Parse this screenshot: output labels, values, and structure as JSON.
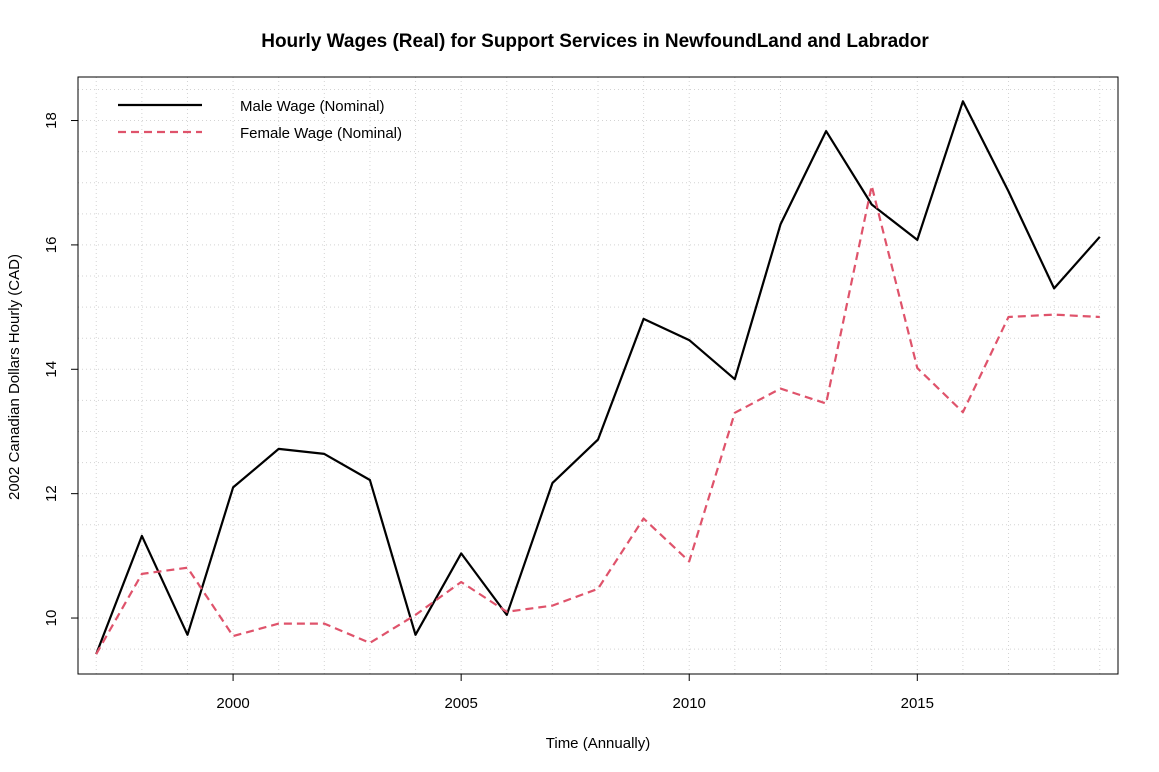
{
  "chart_data": {
    "type": "line",
    "title": "Hourly Wages (Real) for Support Services in NewfoundLand and Labrador",
    "xlabel": "Time (Annually)",
    "ylabel": "2002 Canadian Dollars Hourly (CAD)",
    "xlim": [
      1996.6,
      2019.4
    ],
    "ylim": [
      9.1,
      18.7
    ],
    "xticks": [
      2000,
      2005,
      2010,
      2015
    ],
    "yticks": [
      10,
      12,
      14,
      16,
      18
    ],
    "grid": true,
    "legend_position": "top-left",
    "x": [
      1997,
      1998,
      1999,
      2000,
      2001,
      2002,
      2003,
      2004,
      2005,
      2006,
      2007,
      2008,
      2009,
      2010,
      2011,
      2012,
      2013,
      2014,
      2015,
      2016,
      2017,
      2018,
      2019
    ],
    "series": [
      {
        "name": "Male Wage (Nominal)",
        "color": "#000000",
        "dash": "solid",
        "values": [
          9.42,
          11.32,
          9.73,
          12.1,
          12.72,
          12.64,
          12.22,
          9.73,
          11.04,
          10.05,
          12.17,
          12.87,
          14.81,
          14.47,
          13.84,
          16.33,
          17.83,
          16.65,
          16.08,
          18.31,
          16.86,
          15.3,
          16.13
        ]
      },
      {
        "name": "Female Wage (Nominal)",
        "color": "#DF536B",
        "dash": "dashed",
        "values": [
          9.42,
          10.71,
          10.81,
          9.71,
          9.91,
          9.91,
          9.6,
          10.05,
          10.58,
          10.1,
          10.2,
          10.47,
          11.6,
          10.91,
          13.3,
          13.69,
          13.45,
          16.95,
          14.02,
          13.31,
          14.84,
          14.88,
          14.84
        ]
      }
    ]
  }
}
